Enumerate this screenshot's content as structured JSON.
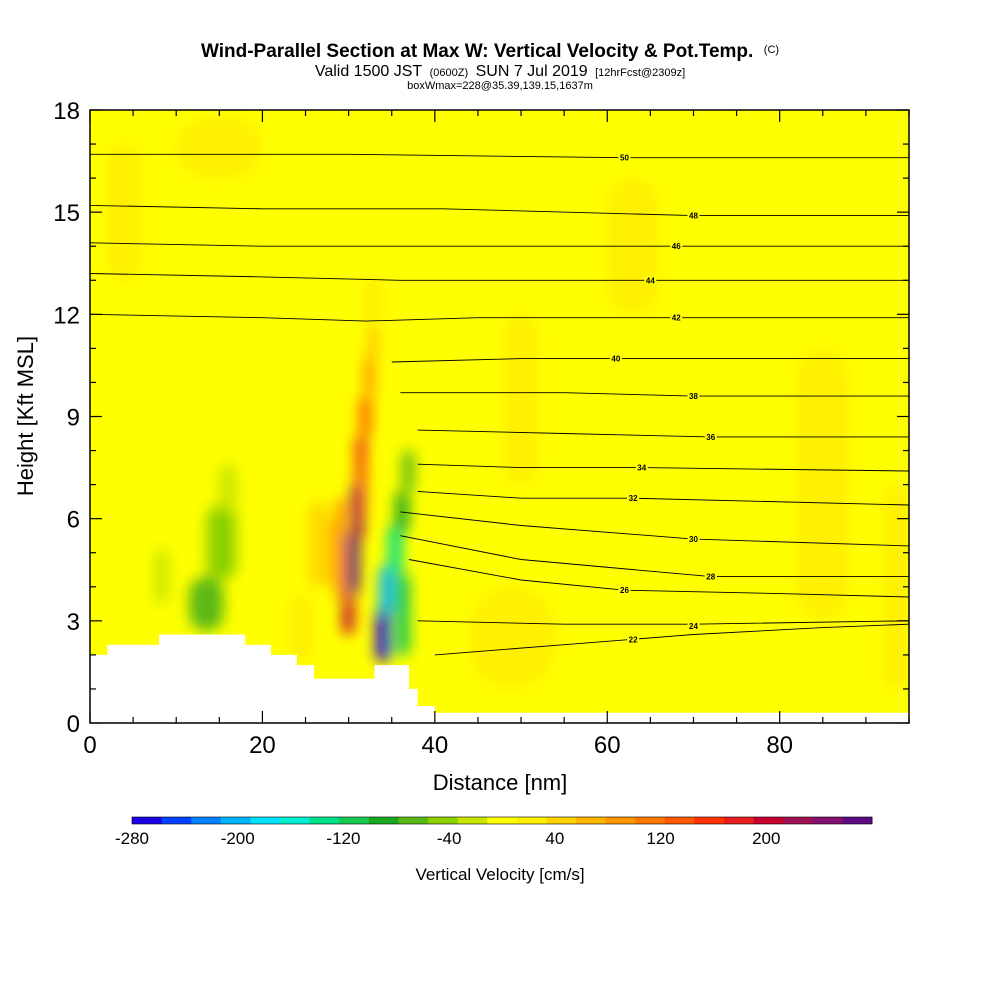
{
  "title": {
    "main": "Wind-Parallel Section at Max W: Vertical Velocity & Pot.Temp.",
    "main_mark": "(C)",
    "sub_a": "Valid 1500 JST",
    "sub_b": "(0600Z)",
    "sub_c": "SUN 7 Jul 2019",
    "sub_d": "[12hrFcst@2309z]",
    "line3": "boxWmax=228@35.39,139.15,1637m"
  },
  "chart_data": {
    "type": "heatmap",
    "xlabel": "Distance [nm]",
    "ylabel": "Height [Kft MSL]",
    "xlim": [
      0,
      95
    ],
    "ylim": [
      0,
      18
    ],
    "x_ticks": [
      "0",
      "20",
      "40",
      "60",
      "80"
    ],
    "y_ticks": [
      "0",
      "3",
      "6",
      "9",
      "12",
      "15",
      "18"
    ],
    "x_tick_values": [
      0,
      20,
      40,
      60,
      80
    ],
    "y_tick_values": [
      0,
      3,
      6,
      9,
      12,
      15,
      18
    ],
    "background_value": 10,
    "terrain": [
      [
        0,
        2.0
      ],
      [
        2,
        2.0
      ],
      [
        2,
        2.3
      ],
      [
        8,
        2.3
      ],
      [
        8,
        2.6
      ],
      [
        18,
        2.6
      ],
      [
        18,
        2.3
      ],
      [
        21,
        2.3
      ],
      [
        21,
        2.0
      ],
      [
        24,
        2.0
      ],
      [
        24,
        1.7
      ],
      [
        26,
        1.7
      ],
      [
        26,
        1.3
      ],
      [
        33,
        1.3
      ],
      [
        33,
        1.7
      ],
      [
        37,
        1.7
      ],
      [
        37,
        1.0
      ],
      [
        38,
        1.0
      ],
      [
        38,
        0.5
      ],
      [
        40,
        0.5
      ],
      [
        40,
        0.3
      ],
      [
        95,
        0.3
      ]
    ],
    "velocity_cells": [
      {
        "x": 29.8,
        "y": 3.8,
        "w": 1.4,
        "h": 1.8,
        "value": 260
      },
      {
        "x": 30.3,
        "y": 5.4,
        "w": 1.4,
        "h": 1.6,
        "value": 220
      },
      {
        "x": 30.8,
        "y": 7.0,
        "w": 1.3,
        "h": 1.4,
        "value": 180
      },
      {
        "x": 29.3,
        "y": 2.6,
        "w": 1.3,
        "h": 1.2,
        "value": 200
      },
      {
        "x": 31.3,
        "y": 8.4,
        "w": 1.3,
        "h": 1.2,
        "value": 140
      },
      {
        "x": 31.8,
        "y": 9.6,
        "w": 1.2,
        "h": 1.2,
        "value": 100
      },
      {
        "x": 32.4,
        "y": 10.8,
        "w": 1.0,
        "h": 0.8,
        "value": 70
      },
      {
        "x": 28.6,
        "y": 3.6,
        "w": 1.0,
        "h": 3.0,
        "value": 120
      },
      {
        "x": 27.8,
        "y": 4.0,
        "w": 0.9,
        "h": 2.0,
        "value": 60
      },
      {
        "x": 31.4,
        "y": 6.0,
        "w": 0.6,
        "h": 2.0,
        "value": 130
      },
      {
        "x": 33.2,
        "y": 1.8,
        "w": 1.6,
        "h": 1.6,
        "value": -260
      },
      {
        "x": 33.6,
        "y": 3.2,
        "w": 1.6,
        "h": 1.4,
        "value": -200
      },
      {
        "x": 34.6,
        "y": 4.4,
        "w": 1.6,
        "h": 1.4,
        "value": -140
      },
      {
        "x": 35.4,
        "y": 5.6,
        "w": 1.6,
        "h": 1.2,
        "value": -90
      },
      {
        "x": 36.2,
        "y": 6.8,
        "w": 1.4,
        "h": 1.2,
        "value": -60
      },
      {
        "x": 35.5,
        "y": 2.0,
        "w": 1.6,
        "h": 2.4,
        "value": -110
      },
      {
        "x": 11.5,
        "y": 2.7,
        "w": 4.0,
        "h": 1.6,
        "value": -60
      },
      {
        "x": 13.5,
        "y": 4.2,
        "w": 3.5,
        "h": 2.2,
        "value": -45
      },
      {
        "x": 15.0,
        "y": 6.2,
        "w": 2.0,
        "h": 1.4,
        "value": -30
      },
      {
        "x": 7.5,
        "y": 3.5,
        "w": 1.6,
        "h": 1.6,
        "value": -25
      },
      {
        "x": 5.0,
        "y": 0.5,
        "w": 3.0,
        "h": 1.5,
        "value": -20
      },
      {
        "x": 23.0,
        "y": 1.8,
        "w": 3.0,
        "h": 2.0,
        "value": 30
      },
      {
        "x": 25.5,
        "y": 4.0,
        "w": 2.0,
        "h": 2.5,
        "value": 35
      },
      {
        "x": 31.5,
        "y": 11.6,
        "w": 2.5,
        "h": 1.5,
        "value": 30
      },
      {
        "x": 44.0,
        "y": 1.0,
        "w": 10.0,
        "h": 3.0,
        "value": 25
      },
      {
        "x": 60.0,
        "y": 12.0,
        "w": 6.0,
        "h": 4.0,
        "value": 25
      },
      {
        "x": 2.0,
        "y": 13.0,
        "w": 4.0,
        "h": 4.0,
        "value": 25
      },
      {
        "x": 82.0,
        "y": 3.0,
        "w": 6.0,
        "h": 8.0,
        "value": 25
      },
      {
        "x": 10.0,
        "y": 16.0,
        "w": 10.0,
        "h": 1.8,
        "value": 22
      },
      {
        "x": 48.0,
        "y": 7.0,
        "w": 4.0,
        "h": 5.0,
        "value": 22
      },
      {
        "x": 92.0,
        "y": 1.0,
        "w": 3.0,
        "h": 6.0,
        "value": 25
      }
    ],
    "theta_contours": [
      {
        "label": "22",
        "label_x": 63,
        "label_y": 2.45,
        "points": [
          [
            40,
            2.0
          ],
          [
            55,
            2.3
          ],
          [
            70,
            2.6
          ],
          [
            85,
            2.8
          ],
          [
            95,
            2.9
          ]
        ]
      },
      {
        "label": "24",
        "label_x": 70,
        "label_y": 2.85,
        "points": [
          [
            38,
            3.0
          ],
          [
            55,
            2.9
          ],
          [
            70,
            2.9
          ],
          [
            95,
            3.0
          ]
        ]
      },
      {
        "label": "26",
        "label_x": 62,
        "label_y": 3.9,
        "points": [
          [
            37,
            4.8
          ],
          [
            50,
            4.2
          ],
          [
            62,
            3.9
          ],
          [
            80,
            3.8
          ],
          [
            95,
            3.7
          ]
        ]
      },
      {
        "label": "28",
        "label_x": 72,
        "label_y": 4.3,
        "points": [
          [
            36,
            5.5
          ],
          [
            50,
            4.8
          ],
          [
            72,
            4.3
          ],
          [
            95,
            4.3
          ]
        ]
      },
      {
        "label": "30",
        "label_x": 70,
        "label_y": 5.4,
        "points": [
          [
            36,
            6.2
          ],
          [
            50,
            5.8
          ],
          [
            70,
            5.4
          ],
          [
            95,
            5.2
          ]
        ]
      },
      {
        "label": "32",
        "label_x": 63,
        "label_y": 6.6,
        "points": [
          [
            38,
            6.8
          ],
          [
            50,
            6.6
          ],
          [
            63,
            6.6
          ],
          [
            95,
            6.4
          ]
        ]
      },
      {
        "label": "34",
        "label_x": 64,
        "label_y": 7.5,
        "points": [
          [
            38,
            7.6
          ],
          [
            50,
            7.5
          ],
          [
            64,
            7.5
          ],
          [
            95,
            7.4
          ]
        ]
      },
      {
        "label": "36",
        "label_x": 72,
        "label_y": 8.4,
        "points": [
          [
            38,
            8.6
          ],
          [
            55,
            8.5
          ],
          [
            72,
            8.4
          ],
          [
            95,
            8.4
          ]
        ]
      },
      {
        "label": "38",
        "label_x": 70,
        "label_y": 9.6,
        "points": [
          [
            36,
            9.7
          ],
          [
            55,
            9.7
          ],
          [
            70,
            9.6
          ],
          [
            95,
            9.6
          ]
        ]
      },
      {
        "label": "40",
        "label_x": 61,
        "label_y": 10.7,
        "points": [
          [
            35,
            10.6
          ],
          [
            50,
            10.7
          ],
          [
            61,
            10.7
          ],
          [
            95,
            10.7
          ]
        ]
      },
      {
        "label": "42",
        "label_x": 68,
        "label_y": 11.9,
        "points": [
          [
            0,
            12.0
          ],
          [
            20,
            11.9
          ],
          [
            32,
            11.8
          ],
          [
            45,
            11.9
          ],
          [
            68,
            11.9
          ],
          [
            95,
            11.9
          ]
        ]
      },
      {
        "label": "44",
        "label_x": 65,
        "label_y": 13.0,
        "points": [
          [
            0,
            13.2
          ],
          [
            20,
            13.1
          ],
          [
            36,
            13.0
          ],
          [
            65,
            13.0
          ],
          [
            95,
            13.0
          ]
        ]
      },
      {
        "label": "46",
        "label_x": 68,
        "label_y": 14.0,
        "points": [
          [
            0,
            14.1
          ],
          [
            20,
            14.0
          ],
          [
            38,
            14.0
          ],
          [
            68,
            14.0
          ],
          [
            95,
            14.0
          ]
        ]
      },
      {
        "label": "48",
        "label_x": 70,
        "label_y": 14.9,
        "points": [
          [
            0,
            15.2
          ],
          [
            20,
            15.1
          ],
          [
            41,
            15.1
          ],
          [
            70,
            14.9
          ],
          [
            95,
            14.9
          ]
        ]
      },
      {
        "label": "50",
        "label_x": 62,
        "label_y": 16.6,
        "points": [
          [
            0,
            16.7
          ],
          [
            30,
            16.7
          ],
          [
            62,
            16.6
          ],
          [
            95,
            16.6
          ]
        ]
      }
    ],
    "colorbar": {
      "title": "Vertical Velocity [cm/s]",
      "tick_labels": [
        "-280",
        "-200",
        "-120",
        "-40",
        "40",
        "120",
        "200"
      ],
      "tick_values": [
        -280,
        -200,
        -120,
        -40,
        40,
        120,
        200
      ],
      "range": [
        -280,
        280
      ],
      "colors": [
        "#1a00e6",
        "#0040ff",
        "#0080ff",
        "#00b4ff",
        "#00e0ff",
        "#00f0d0",
        "#00e08a",
        "#18c850",
        "#1aa81e",
        "#5ab814",
        "#8cd000",
        "#c8e600",
        "#ffff00",
        "#fff000",
        "#ffd200",
        "#ffb400",
        "#ff9600",
        "#ff7800",
        "#ff5a00",
        "#ff3200",
        "#e61e1e",
        "#c80032",
        "#a01050",
        "#82106e",
        "#5a0a82"
      ]
    }
  }
}
